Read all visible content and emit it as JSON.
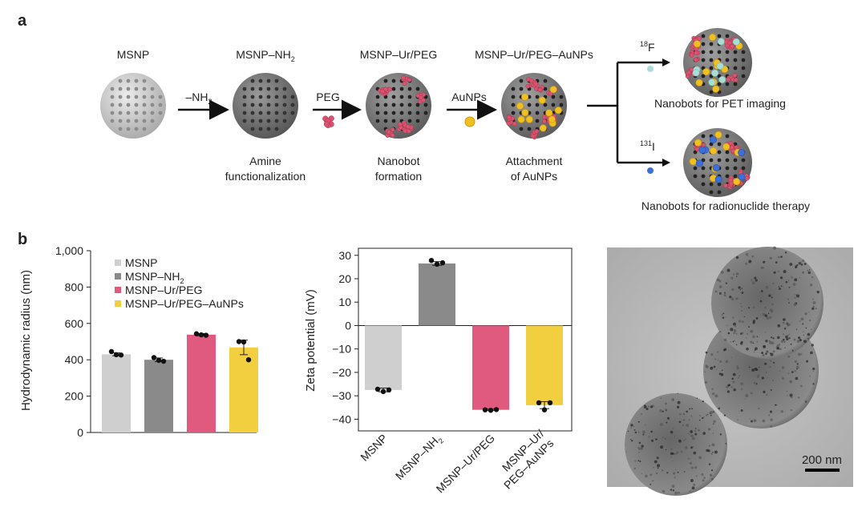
{
  "panel_a": {
    "letter": "a",
    "particles": [
      {
        "top": "MSNP",
        "bottom": [
          "",
          ""
        ]
      },
      {
        "top": "MSNP–NH",
        "top_sub": "2",
        "bottom": [
          "Amine",
          "functionalization"
        ]
      },
      {
        "top": "MSNP–Ur/PEG",
        "bottom": [
          "Nanobot",
          "formation"
        ]
      },
      {
        "top": "MSNP–Ur/PEG–AuNPs",
        "bottom": [
          "Attachment",
          "of AuNPs"
        ]
      }
    ],
    "arrows": [
      {
        "label": "–NH",
        "sub": "2"
      },
      {
        "label": "PEG",
        "sub": ""
      },
      {
        "label": "AuNPs",
        "sub": ""
      }
    ],
    "branches": [
      {
        "isotope_sup": "18",
        "isotope": "F",
        "caption": "Nanobots for PET imaging"
      },
      {
        "isotope_sup": "131",
        "isotope": "I",
        "caption": "Nanobots for radionuclide therapy"
      }
    ]
  },
  "panel_b": {
    "letter": "b",
    "scale_bar": "200 nm"
  },
  "colors": {
    "msnp": "#cfcfcf",
    "nh2": "#8a8a8a",
    "peg": "#e05a7f",
    "aunp": "#f2cf3e",
    "isotope_f": "#a9ddd6",
    "isotope_i": "#3c6fd8"
  },
  "chart_data": [
    {
      "type": "bar",
      "title": "",
      "ylabel": "Hydrodynamic radius (nm)",
      "xlabel": "",
      "ylim": [
        0,
        1000
      ],
      "yticks": [
        "0",
        "200",
        "400",
        "600",
        "800",
        "1,000"
      ],
      "ytick_values": [
        0,
        200,
        400,
        600,
        800,
        1000
      ],
      "legend_position": "top-left",
      "categories": [
        "MSNP",
        "MSNP–NH2",
        "MSNP–Ur/PEG",
        "MSNP–Ur/PEG–AuNPs"
      ],
      "legend": [
        {
          "label": "MSNP",
          "sub": ""
        },
        {
          "label": "MSNP–NH",
          "sub": "2"
        },
        {
          "label": "MSNP–Ur/PEG",
          "sub": ""
        },
        {
          "label": "MSNP–Ur/PEG–AuNPs",
          "sub": ""
        }
      ],
      "values": [
        430,
        400,
        538,
        468
      ],
      "errors": [
        8,
        10,
        6,
        40
      ],
      "points": [
        [
          445,
          428,
          426
        ],
        [
          412,
          397,
          392
        ],
        [
          543,
          537,
          535
        ],
        [
          500,
          498,
          400
        ]
      ]
    },
    {
      "type": "bar",
      "title": "",
      "ylabel": "Zeta potential (mV)",
      "xlabel": "",
      "ylim": [
        -45,
        33
      ],
      "yticks": [
        "−40",
        "−30",
        "−20",
        "−10",
        "0",
        "10",
        "20",
        "30"
      ],
      "ytick_values": [
        -40,
        -30,
        -20,
        -10,
        0,
        10,
        20,
        30
      ],
      "categories": [
        "MSNP",
        "MSNP–NH2",
        "MSNP–Ur/PEG",
        "MSNP–Ur/PEG–AuNPs"
      ],
      "xtick_labels": [
        [
          "MSNP"
        ],
        [
          "MSNP–NH",
          "2"
        ],
        [
          "MSNP–Ur/PEG"
        ],
        [
          "MSNP–Ur/",
          "PEG–AuNPs"
        ]
      ],
      "values": [
        -27.5,
        26.5,
        -36,
        -34
      ],
      "errors": [
        0.8,
        0.8,
        0.3,
        1.5
      ],
      "points": [
        [
          -27.2,
          -28.2,
          -27.5
        ],
        [
          27.8,
          26.2,
          26.8
        ],
        [
          -36,
          -36.2,
          -35.9
        ],
        [
          -33,
          -36,
          -33
        ]
      ]
    }
  ]
}
